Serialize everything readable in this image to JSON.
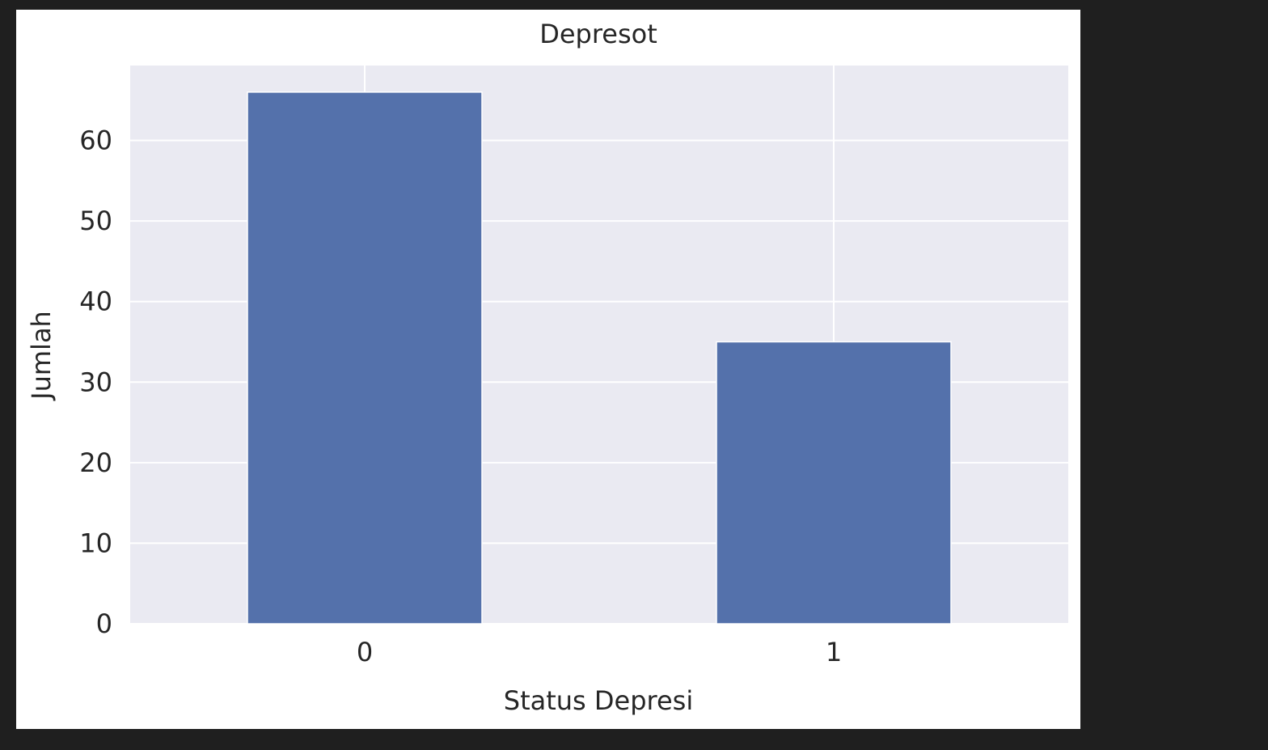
{
  "chart_data": {
    "type": "bar",
    "title": "Depresot",
    "xlabel": "Status Depresi",
    "ylabel": "Jumlah",
    "categories": [
      "0",
      "1"
    ],
    "values": [
      66,
      35
    ],
    "ylim": [
      0,
      69.3
    ],
    "yticks": [
      0,
      10,
      20,
      30,
      40,
      50,
      60
    ],
    "grid": true,
    "legend": "none"
  },
  "colors": {
    "bar": "#5471ab",
    "plot_background": "#eaeaf2",
    "grid": "#ffffff",
    "figure_background": "#ffffff",
    "page_background": "#1f1f1f"
  }
}
